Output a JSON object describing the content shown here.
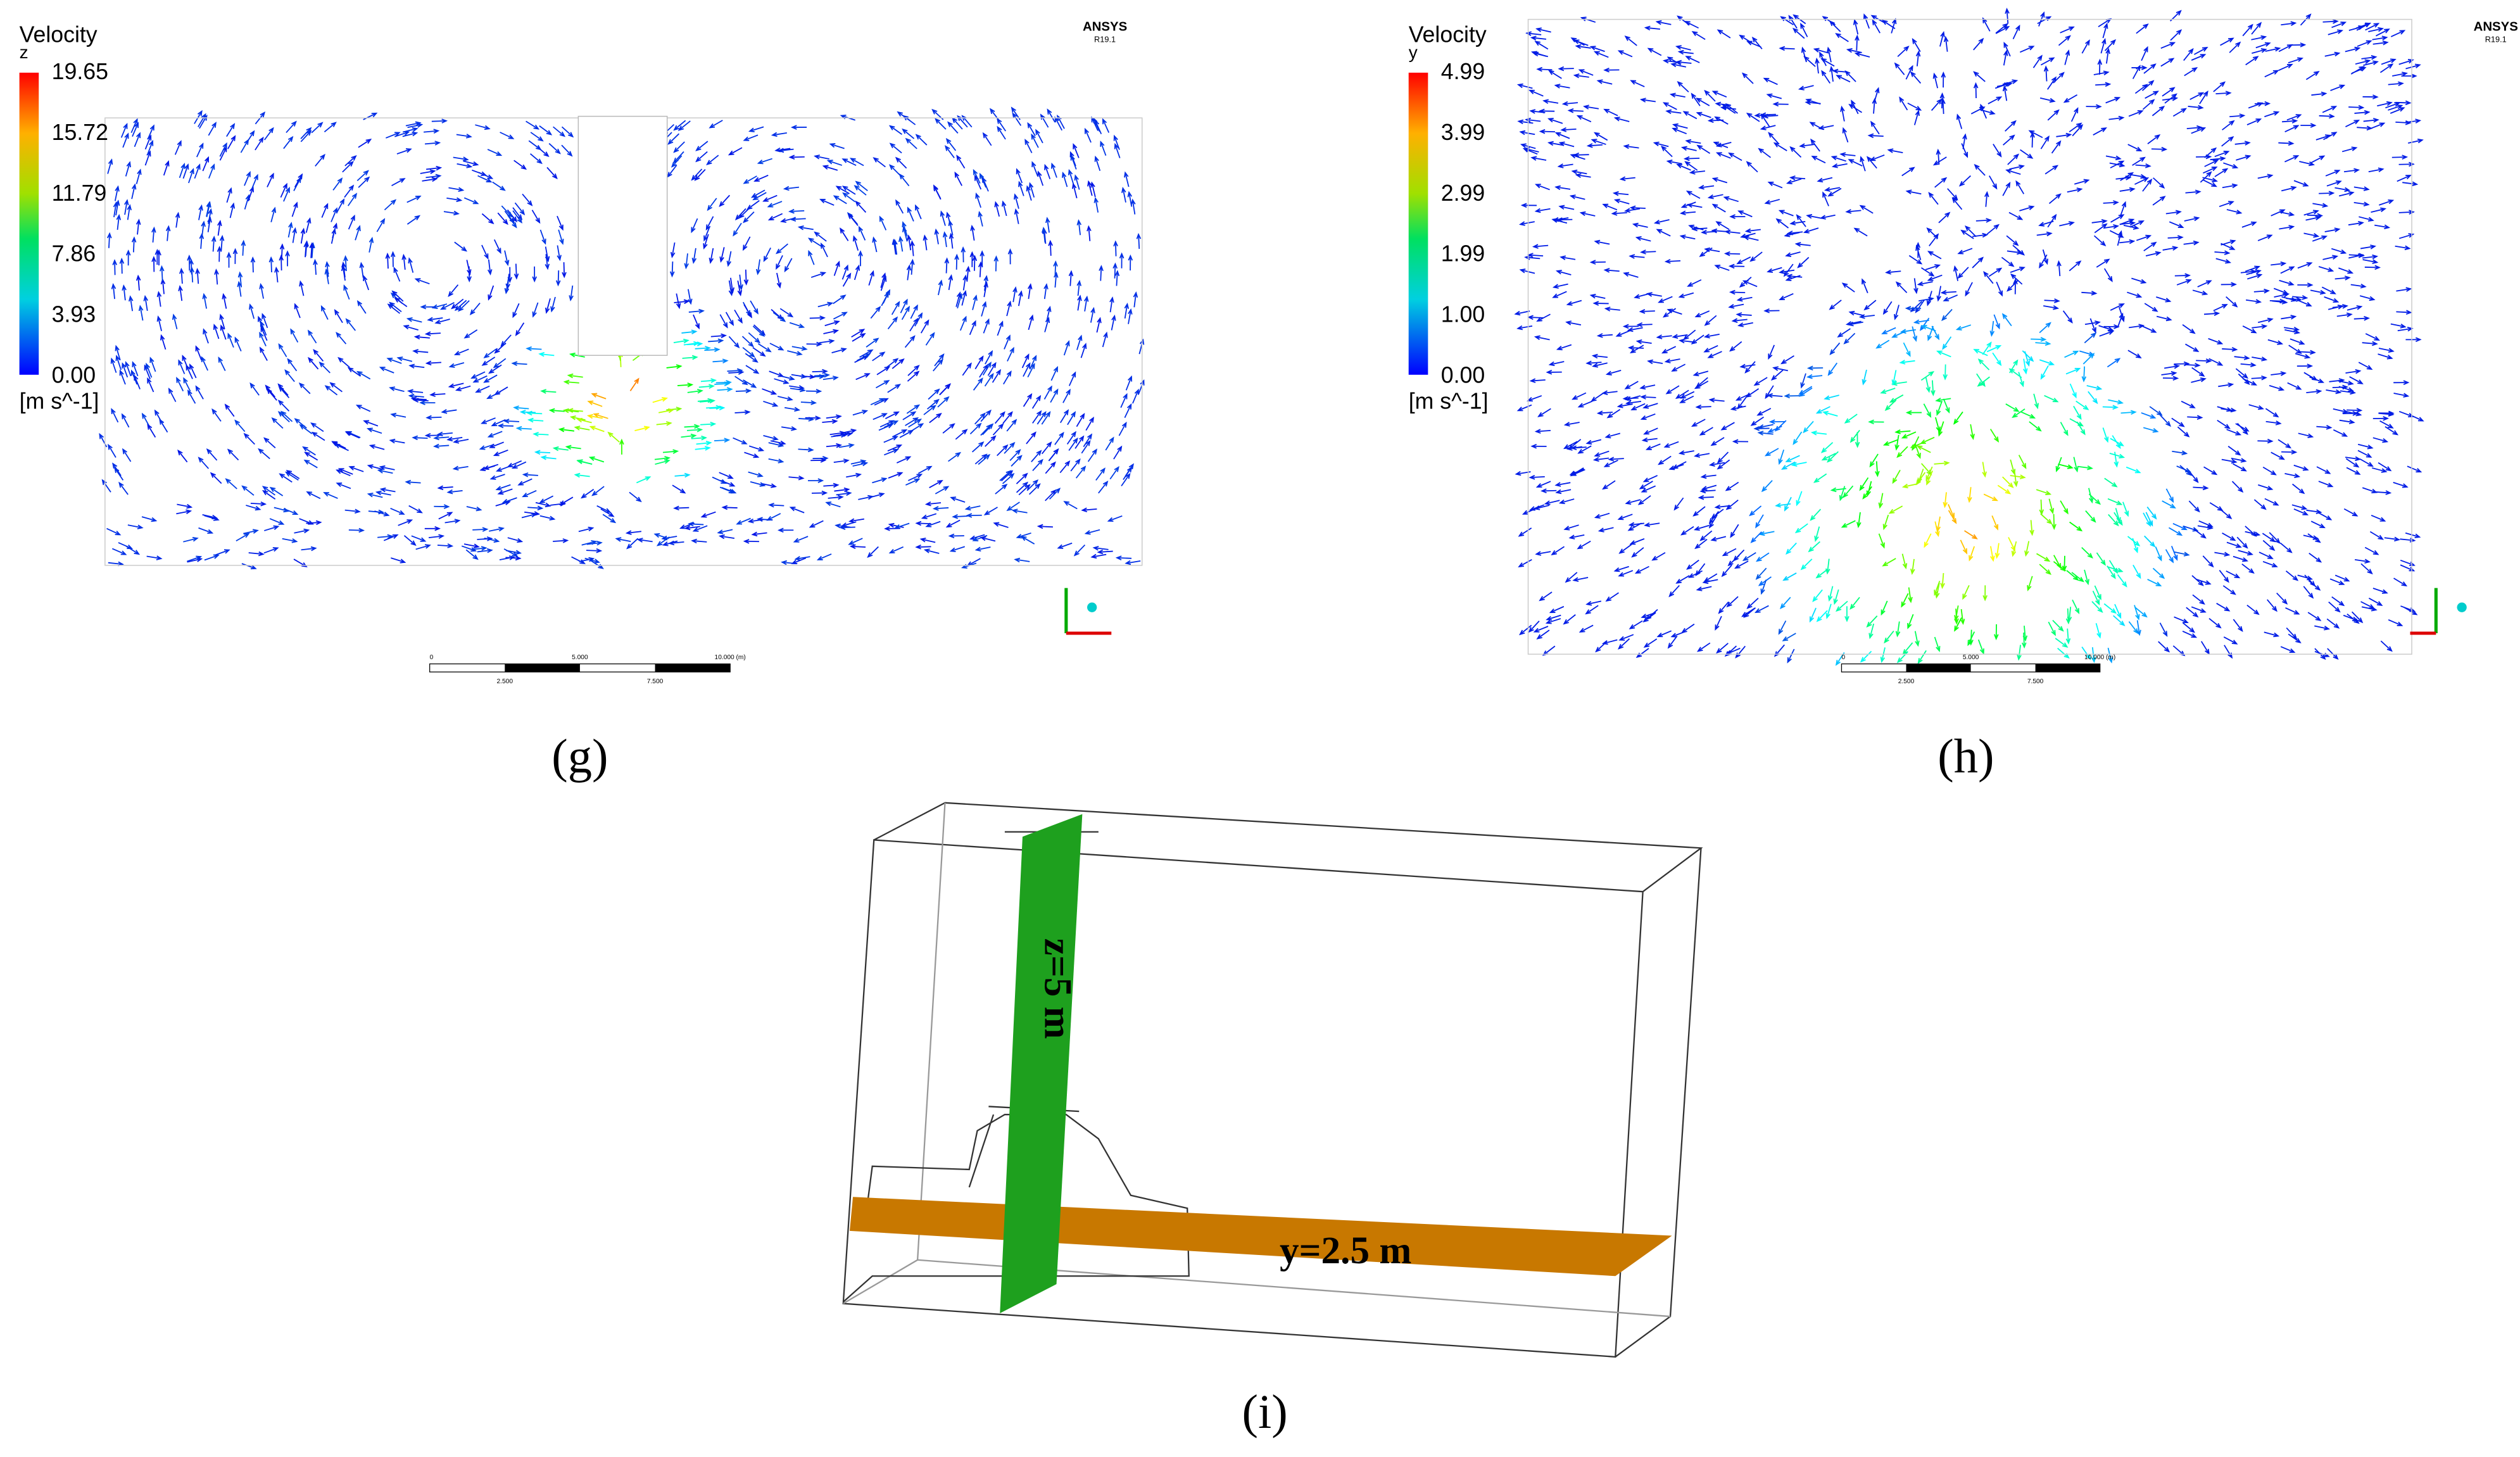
{
  "panels": [
    {
      "label": "(g)",
      "software": "ANSYS",
      "version": "R19.1",
      "legend": {
        "title": "Velocity",
        "component": "z",
        "ticks": [
          "19.65",
          "15.72",
          "11.79",
          "7.86",
          "3.93",
          "0.00"
        ],
        "unit": "[m s^-1]"
      },
      "scale_bar": [
        "0",
        "5.000",
        "10.000 (m)",
        "2.500",
        "7.500"
      ]
    },
    {
      "label": "(h)",
      "software": "ANSYS",
      "version": "R19.1",
      "legend": {
        "title": "Velocity",
        "component": "y",
        "ticks": [
          "4.99",
          "3.99",
          "2.99",
          "1.99",
          "1.00",
          "0.00"
        ],
        "unit": "[m s^-1]"
      },
      "scale_bar": [
        "0",
        "5.000",
        "10.000 (m)",
        "2.500",
        "7.500"
      ]
    },
    {
      "label": "(i)",
      "planes": [
        "z=5 m",
        "y=2.5 m"
      ]
    }
  ]
}
